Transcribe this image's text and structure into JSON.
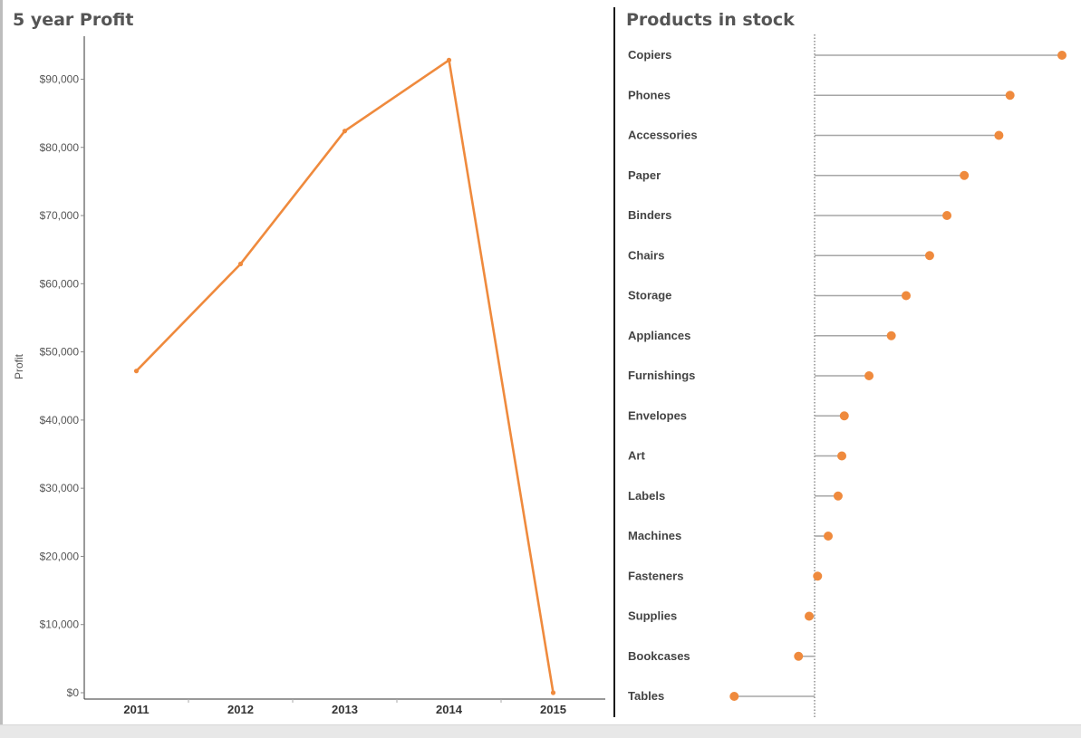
{
  "colors": {
    "accent": "#ef8a3d",
    "stem": "#a6a6a6",
    "axis": "#333333"
  },
  "chart_data": [
    {
      "type": "line",
      "title": "5 year Profit",
      "xlabel": "",
      "ylabel": "Profit",
      "x": [
        "2011",
        "2012",
        "2013",
        "2014",
        "2015"
      ],
      "values": [
        47200,
        62900,
        82400,
        92800,
        0
      ],
      "ylim": [
        0,
        98000
      ],
      "yticks": [
        0,
        10000,
        20000,
        30000,
        40000,
        50000,
        60000,
        70000,
        80000,
        90000
      ],
      "ytick_labels": [
        "$0",
        "$10,000",
        "$20,000",
        "$30,000",
        "$40,000",
        "$50,000",
        "$60,000",
        "$70,000",
        "$80,000",
        "$90,000"
      ],
      "grid": false
    },
    {
      "type": "lollipop",
      "title": "Products in stock",
      "categories": [
        "Copiers",
        "Phones",
        "Accessories",
        "Paper",
        "Binders",
        "Chairs",
        "Storage",
        "Appliances",
        "Furnishings",
        "Envelopes",
        "Art",
        "Labels",
        "Machines",
        "Fasteners",
        "Supplies",
        "Bookcases",
        "Tables"
      ],
      "values": [
        1000,
        790,
        745,
        605,
        535,
        465,
        370,
        310,
        220,
        120,
        110,
        95,
        55,
        12,
        -22,
        -65,
        -325
      ],
      "xlim": [
        -360,
        1010
      ],
      "zero_line": "dotted",
      "grid": false
    }
  ]
}
